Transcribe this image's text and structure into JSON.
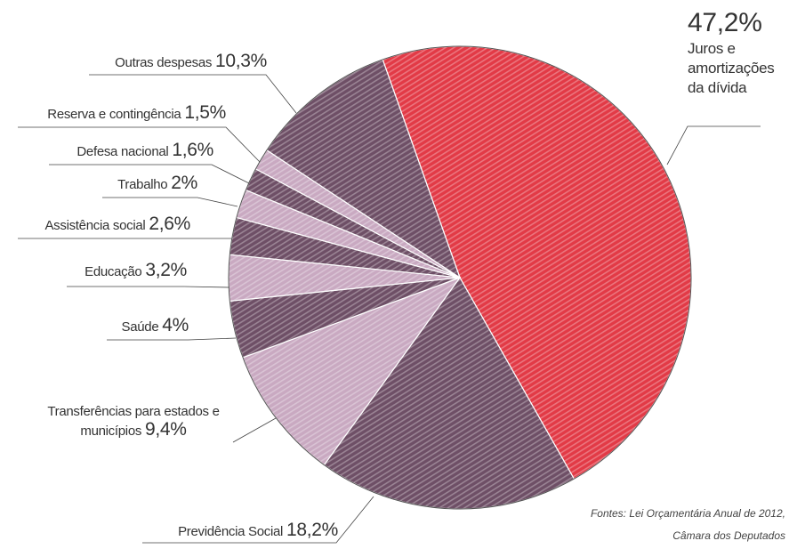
{
  "chart_data": {
    "type": "pie",
    "categories": [
      "Juros e amortizações da dívida",
      "Previdência Social",
      "Transferências para estados e municípios",
      "Saúde",
      "Educação",
      "Assistência social",
      "Trabalho",
      "Defesa nacional",
      "Reserva e contingência",
      "Outras despesas"
    ],
    "values": [
      47.2,
      18.2,
      9.4,
      4,
      3.2,
      2.6,
      2,
      1.6,
      1.5,
      10.3
    ],
    "value_labels": [
      "47,2%",
      "18,2%",
      "9,4%",
      "4%",
      "3,2%",
      "2,6%",
      "2%",
      "1,6%",
      "1,5%",
      "10,3%"
    ],
    "colors": [
      "#e23a46",
      "#6e4f66",
      "#c9a9c1",
      "#6e4f66",
      "#c9a9c1",
      "#6e4f66",
      "#c9a9c1",
      "#6e4f66",
      "#c9a9c1",
      "#6e4f66"
    ],
    "notes": [
      "Fontes: Lei Orçamentária Anual de 2012,",
      "Câmara dos Deputados"
    ]
  }
}
